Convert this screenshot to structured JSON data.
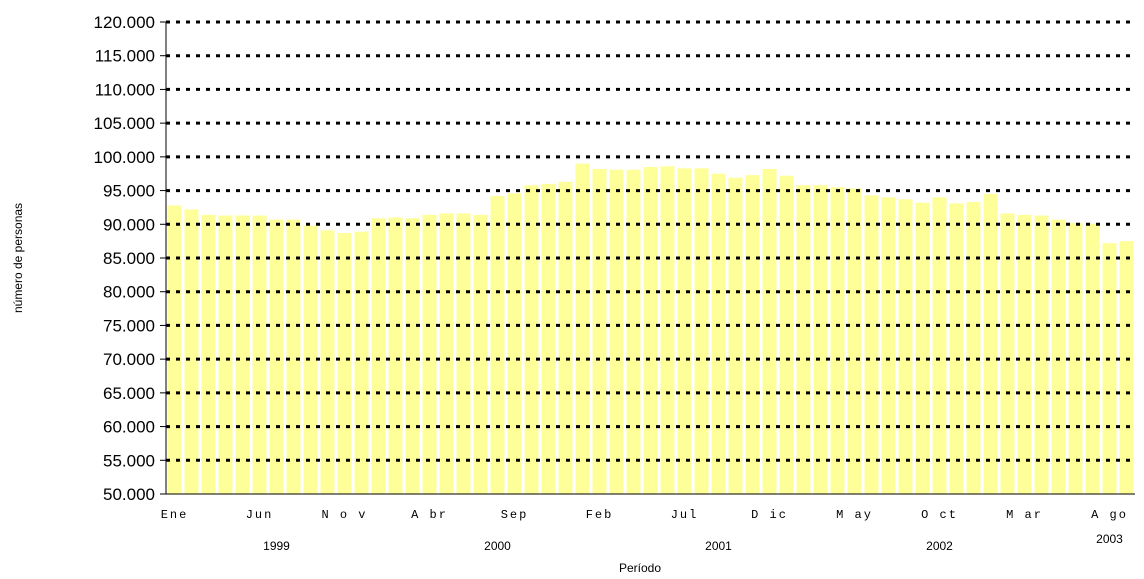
{
  "chart_data": {
    "type": "bar",
    "title": "",
    "xlabel": "Período",
    "ylabel": "número de personas",
    "ylim": [
      50000,
      120000
    ],
    "yticks": [
      50000,
      55000,
      60000,
      65000,
      70000,
      75000,
      80000,
      85000,
      90000,
      95000,
      100000,
      105000,
      110000,
      115000,
      120000
    ],
    "ytick_labels": [
      "50.000",
      "55.000",
      "60.000",
      "65.000",
      "70.000",
      "75.000",
      "80.000",
      "85.000",
      "90.000",
      "95.000",
      "100.000",
      "105.000",
      "110.000",
      "115.000",
      "120.000"
    ],
    "grid": "horizontal dotted",
    "bar_color": "#ffff99",
    "month_labels": [
      {
        "index": 0,
        "label": "Ene"
      },
      {
        "index": 5,
        "label": "Jun"
      },
      {
        "index": 10,
        "label": "N o v"
      },
      {
        "index": 15,
        "label": "A br"
      },
      {
        "index": 20,
        "label": "Sep"
      },
      {
        "index": 25,
        "label": "Feb"
      },
      {
        "index": 30,
        "label": "Jul"
      },
      {
        "index": 35,
        "label": "D ic"
      },
      {
        "index": 40,
        "label": "M ay"
      },
      {
        "index": 45,
        "label": "O ct"
      },
      {
        "index": 50,
        "label": "M ar"
      },
      {
        "index": 55,
        "label": "A go"
      }
    ],
    "year_labels": [
      {
        "index": 6,
        "label": "1999"
      },
      {
        "index": 19,
        "label": "2000"
      },
      {
        "index": 32,
        "label": "2001"
      },
      {
        "index": 45,
        "label": "2002"
      },
      {
        "index": 55,
        "label": "2003"
      }
    ],
    "values": [
      92800,
      92200,
      91400,
      91300,
      91300,
      91300,
      90700,
      90700,
      89800,
      89100,
      88700,
      88900,
      90900,
      91000,
      90900,
      91400,
      91600,
      91600,
      91400,
      94200,
      94600,
      95800,
      96000,
      96300,
      99000,
      98200,
      98100,
      98100,
      98500,
      98600,
      98300,
      98300,
      97500,
      96900,
      97300,
      98200,
      97200,
      95800,
      95800,
      95500,
      95300,
      94300,
      94000,
      93700,
      93200,
      94000,
      93100,
      93300,
      94500,
      91600,
      91400,
      91300,
      90700,
      90200,
      90100,
      87200,
      87500
    ]
  }
}
